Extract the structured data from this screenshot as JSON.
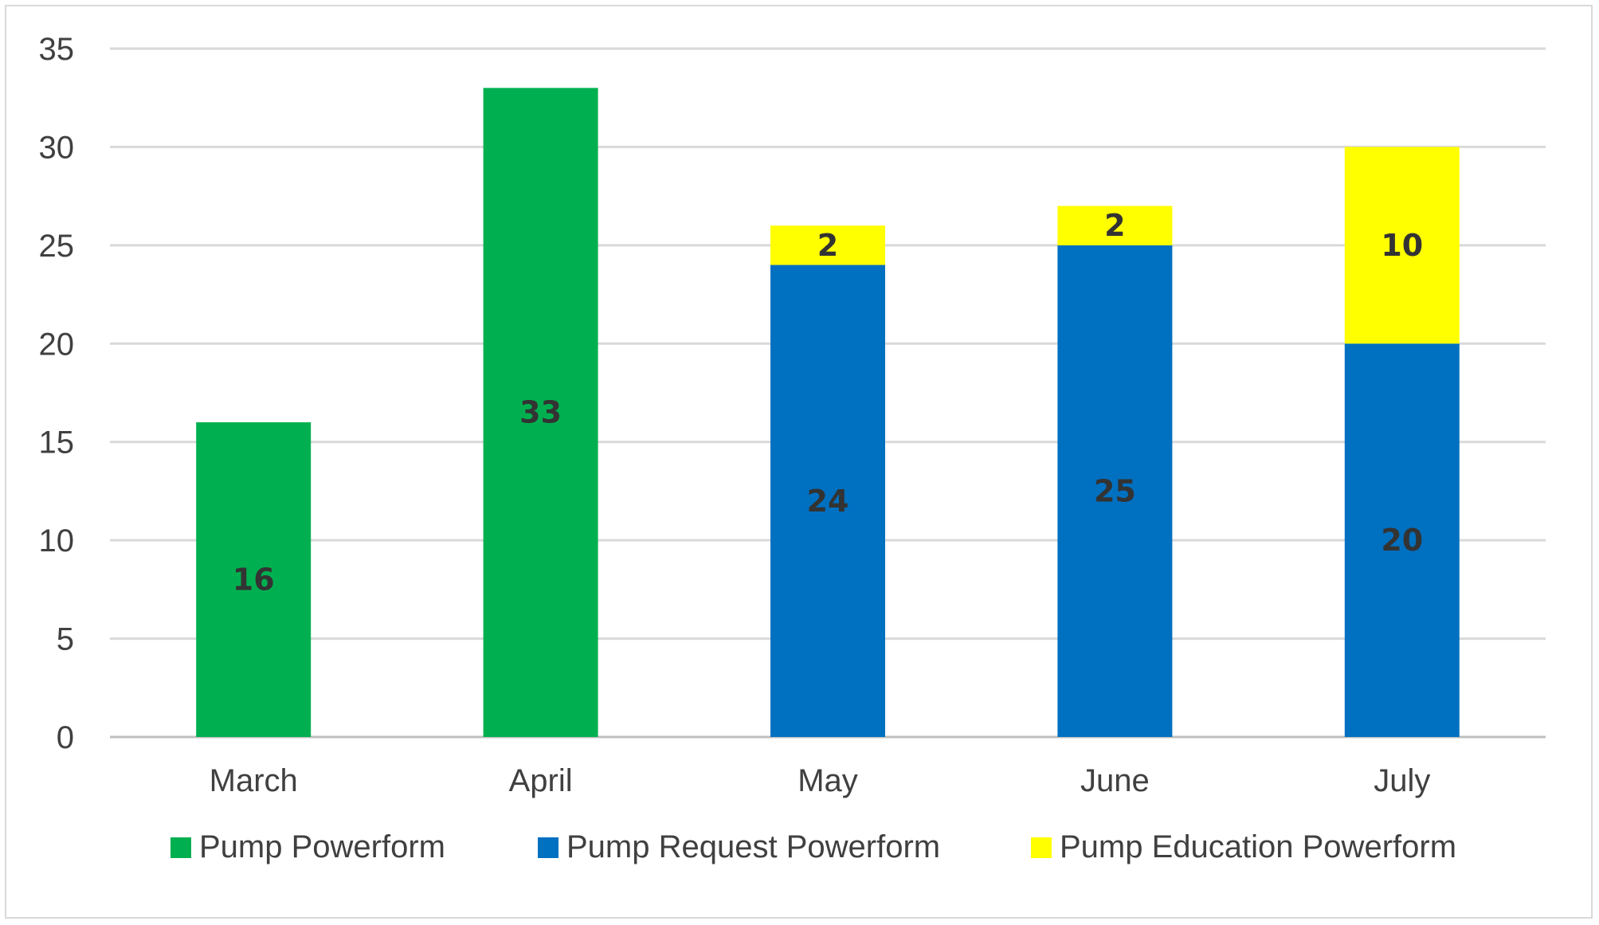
{
  "chart_data": {
    "type": "bar",
    "stacked": true,
    "title": "",
    "xlabel": "",
    "ylabel": "",
    "ylim": [
      0,
      35
    ],
    "yticks": [
      0,
      5,
      10,
      15,
      20,
      25,
      30,
      35
    ],
    "grid": true,
    "legend_position": "bottom",
    "categories": [
      "March",
      "April",
      "May",
      "June",
      "July"
    ],
    "series": [
      {
        "name": "Pump Powerform",
        "color": "#00b050",
        "values": [
          16,
          33,
          0,
          0,
          0
        ]
      },
      {
        "name": "Pump Request Powerform",
        "color": "#0070c0",
        "values": [
          0,
          0,
          24,
          25,
          20
        ]
      },
      {
        "name": "Pump Education Powerform",
        "color": "#ffff00",
        "values": [
          0,
          0,
          2,
          2,
          10
        ]
      }
    ]
  }
}
